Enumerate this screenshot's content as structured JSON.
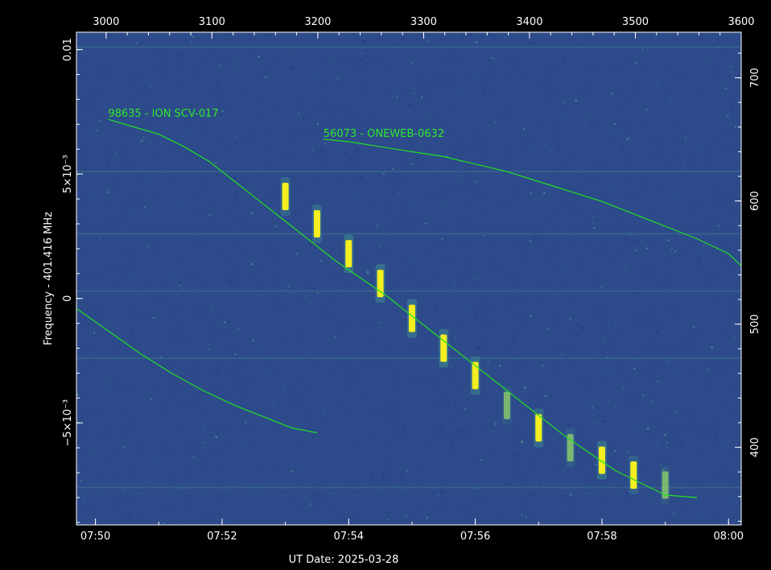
{
  "chart_data": {
    "type": "heatmap",
    "title": "",
    "xlabel": "UT Date: 2025-03-28",
    "ylabel": "Frequency - 401.416 MHz",
    "x_bottom_ticks": [
      "07:50",
      "07:52",
      "07:54",
      "07:56",
      "07:58",
      "08:00"
    ],
    "x_bottom_range_minutes": [
      469.7,
      480.2
    ],
    "x_top_ticks": [
      3000,
      3100,
      3200,
      3300,
      3400,
      3500,
      3600
    ],
    "x_top_range": [
      2972,
      3600
    ],
    "y_left_ticks": [
      {
        "value": 0.01,
        "label": "0.01"
      },
      {
        "value": 0.005,
        "label": "5×10⁻³"
      },
      {
        "value": 0,
        "label": "0"
      },
      {
        "value": -0.005,
        "label": "−5×10⁻³"
      }
    ],
    "y_left_range": [
      -0.0091,
      0.0107
    ],
    "y_right_ticks": [
      400,
      500,
      600,
      700
    ],
    "y_right_range": [
      337,
      737
    ],
    "colors": {
      "background": "#2d4a8a",
      "noise_low": "#243f82",
      "noise_high": "#3f8a8f",
      "signal": "#f5ee20",
      "trace": "#22e022"
    },
    "series": [
      {
        "name": "98635 - ION SCV-017",
        "time_minutes": [
          470.2,
          470.6,
          471.0,
          471.4,
          471.8,
          472.2,
          472.6,
          473.0,
          473.4,
          473.8,
          474.2,
          474.6,
          475.0,
          475.4,
          475.8,
          476.2,
          476.6,
          477.0,
          477.4,
          477.8,
          478.2,
          478.6,
          479.0,
          479.5
        ],
        "freq": [
          0.0072,
          0.0069,
          0.0066,
          0.0061,
          0.0055,
          0.0047,
          0.0039,
          0.0031,
          0.0023,
          0.0015,
          0.0008,
          0.0001,
          -0.0007,
          -0.0015,
          -0.0023,
          -0.0031,
          -0.0039,
          -0.0047,
          -0.0055,
          -0.0062,
          -0.0069,
          -0.0074,
          -0.0079,
          -0.008
        ]
      },
      {
        "name": "56073 - ONEWEB-0632",
        "time_minutes": [
          473.6,
          474.0,
          474.5,
          475.0,
          475.5,
          476.0,
          476.5,
          477.0,
          477.5,
          478.0,
          478.5,
          479.0,
          479.5,
          480.0,
          480.2
        ],
        "freq": [
          0.0064,
          0.0063,
          0.0061,
          0.0059,
          0.0057,
          0.0054,
          0.0051,
          0.0047,
          0.0043,
          0.0039,
          0.0034,
          0.0029,
          0.0024,
          0.0018,
          0.0013
        ]
      },
      {
        "name": "",
        "time_minutes": [
          469.7,
          470.2,
          470.7,
          471.2,
          471.7,
          472.2,
          472.7,
          473.1,
          473.5
        ],
        "freq": [
          -0.0004,
          -0.0013,
          -0.0022,
          -0.003,
          -0.0037,
          -0.0043,
          -0.0048,
          -0.0052,
          -0.0054
        ]
      }
    ],
    "signal_bursts": {
      "time_minutes": [
        473.0,
        473.5,
        474.0,
        474.5,
        475.0,
        475.5,
        476.0,
        476.5,
        477.0,
        477.5,
        478.0,
        478.5,
        479.0
      ],
      "freq": [
        0.0041,
        0.003,
        0.0018,
        0.0006,
        -0.0008,
        -0.002,
        -0.0031,
        -0.0043,
        -0.0052,
        -0.006,
        -0.0065,
        -0.0071,
        -0.0075
      ],
      "intensity": [
        0.8,
        0.9,
        1.0,
        1.0,
        1.0,
        1.0,
        0.9,
        0.4,
        0.9,
        0.5,
        1.0,
        0.7,
        0.4
      ]
    },
    "labels": [
      {
        "text": "98635 - ION SCV-017",
        "time_minutes": 470.2,
        "freq": 0.0073
      },
      {
        "text": "56073 - ONEWEB-0632",
        "time_minutes": 473.6,
        "freq": 0.0065
      }
    ]
  }
}
